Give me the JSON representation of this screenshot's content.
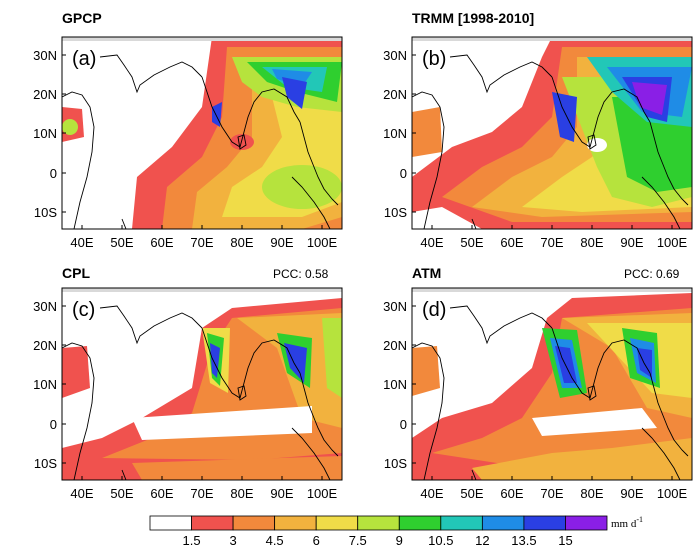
{
  "panels": [
    {
      "id": "a",
      "title": "GPCP",
      "label": "(a)",
      "pcc": ""
    },
    {
      "id": "b",
      "title": "TRMM [1998-2010]",
      "label": "(b)",
      "pcc": ""
    },
    {
      "id": "c",
      "title": "CPL",
      "label": "(c)",
      "pcc": "PCC:  0.58"
    },
    {
      "id": "d",
      "title": "ATM",
      "label": "(d)",
      "pcc": "PCC:  0.69"
    }
  ],
  "axes": {
    "lat_ticks": [
      "30N",
      "20N",
      "10N",
      "0",
      "10S"
    ],
    "lon_ticks": [
      "40E",
      "50E",
      "60E",
      "70E",
      "80E",
      "90E",
      "100E"
    ]
  },
  "colorbar": {
    "levels": [
      "1.5",
      "3",
      "4.5",
      "6",
      "7.5",
      "9",
      "10.5",
      "12",
      "13.5",
      "15"
    ],
    "unit_base": "mm d",
    "unit_exp": "-1",
    "colors": [
      "#ffffff",
      "#f0524e",
      "#f2893c",
      "#f2b23e",
      "#f0dc48",
      "#b6e33d",
      "#2fcf2f",
      "#22c7b7",
      "#1f8ce6",
      "#2a3fe3",
      "#8a1fe6"
    ]
  }
}
